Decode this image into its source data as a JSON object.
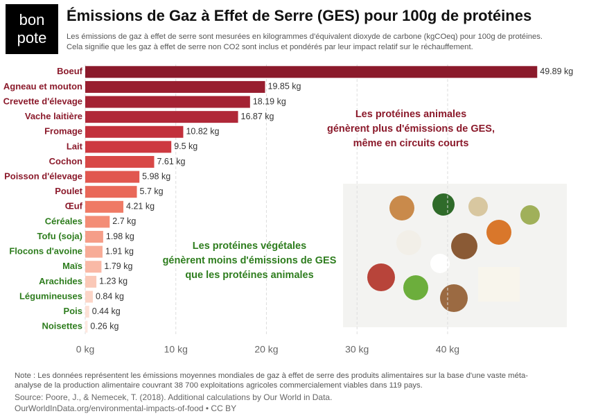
{
  "logo": [
    "bon",
    "pote"
  ],
  "chart_data": {
    "type": "hbar",
    "title": "Émissions de Gaz à Effet de Serre (GES) pour 100g de protéines",
    "subtitle": [
      "Les émissions de gaz à effet de serre sont mesurées en kilogrammes d'équivalent dioxyde de carbone (kgCOeq) pour 100g de protéines.",
      "Cela signifie que les gaz à effet de serre non CO2 sont inclus et pondérés par leur impact relatif sur le réchauffement."
    ],
    "categories": [
      "Boeuf",
      "Agneau et mouton",
      "Crevette d'élevage",
      "Vache laitière",
      "Fromage",
      "Lait",
      "Cochon",
      "Poisson d'élevage",
      "Poulet",
      "Œuf",
      "Céréales",
      "Tofu (soja)",
      "Flocons d'avoine",
      "Maïs",
      "Arachides",
      "Légumineuses",
      "Pois",
      "Noisettes"
    ],
    "values": [
      49.89,
      19.85,
      18.19,
      16.87,
      10.82,
      9.5,
      7.61,
      5.98,
      5.7,
      4.21,
      2.7,
      1.98,
      1.91,
      1.79,
      1.23,
      0.84,
      0.44,
      0.26
    ],
    "value_labels": [
      "49.89 kg",
      "19.85 kg",
      "18.19 kg",
      "16.87 kg",
      "10.82 kg",
      "9.5 kg",
      "7.61 kg",
      "5.98 kg",
      "5.7 kg",
      "4.21 kg",
      "2.7 kg",
      "1.98 kg",
      "1.91 kg",
      "1.79 kg",
      "1.23 kg",
      "0.84 kg",
      "0.44 kg",
      "0.26 kg"
    ],
    "colors": [
      "#8b1a2b",
      "#981e2f",
      "#a42233",
      "#b02838",
      "#c2303b",
      "#cd3940",
      "#d84846",
      "#e1574f",
      "#e96859",
      "#ef7a65",
      "#f38d76",
      "#f59e88",
      "#f7ac97",
      "#f9b9a6",
      "#fac8b7",
      "#fcd5c7",
      "#fde0d5",
      "#fee8e0"
    ],
    "label_colors": [
      "#8b1a2b",
      "#8b1a2b",
      "#8b1a2b",
      "#8b1a2b",
      "#8b1a2b",
      "#8b1a2b",
      "#8b1a2b",
      "#8b1a2b",
      "#8b1a2b",
      "#8b1a2b",
      "#2e7d1e",
      "#2e7d1e",
      "#2e7d1e",
      "#2e7d1e",
      "#2e7d1e",
      "#2e7d1e",
      "#2e7d1e",
      "#2e7d1e"
    ],
    "xlim": [
      0,
      54
    ],
    "xticks": [
      {
        "value": 0,
        "label": "0 kg"
      },
      {
        "value": 10,
        "label": "10 kg"
      },
      {
        "value": 20,
        "label": "20 kg"
      },
      {
        "value": 30,
        "label": "30 kg"
      },
      {
        "value": 40,
        "label": "40 kg"
      }
    ],
    "grid": true,
    "annotations": [
      {
        "lines": [
          "Les protéines animales",
          "génèrent plus d'émissions de GES,",
          "même en circuits courts"
        ],
        "color": "#8b1a2b"
      },
      {
        "lines": [
          "Les protéines végétales",
          "génèrent moins d'émissions de GES",
          "que les protéines animales"
        ],
        "color": "#2e7d1e"
      }
    ],
    "note": [
      "Note : Les données représentent les émissions moyennes mondiales de gaz à effet de serre des produits alimentaires sur la base d'une vaste méta-",
      "analyse de la production alimentaire couvrant 38 700 exploitations agricoles commercialement viables dans 119 pays."
    ],
    "source": "Source: Poore, J., & Nemecek, T. (2018). Additional calculations by Our World in Data.",
    "url": "OurWorldInData.org/environmental-impacts-of-food • CC BY"
  }
}
